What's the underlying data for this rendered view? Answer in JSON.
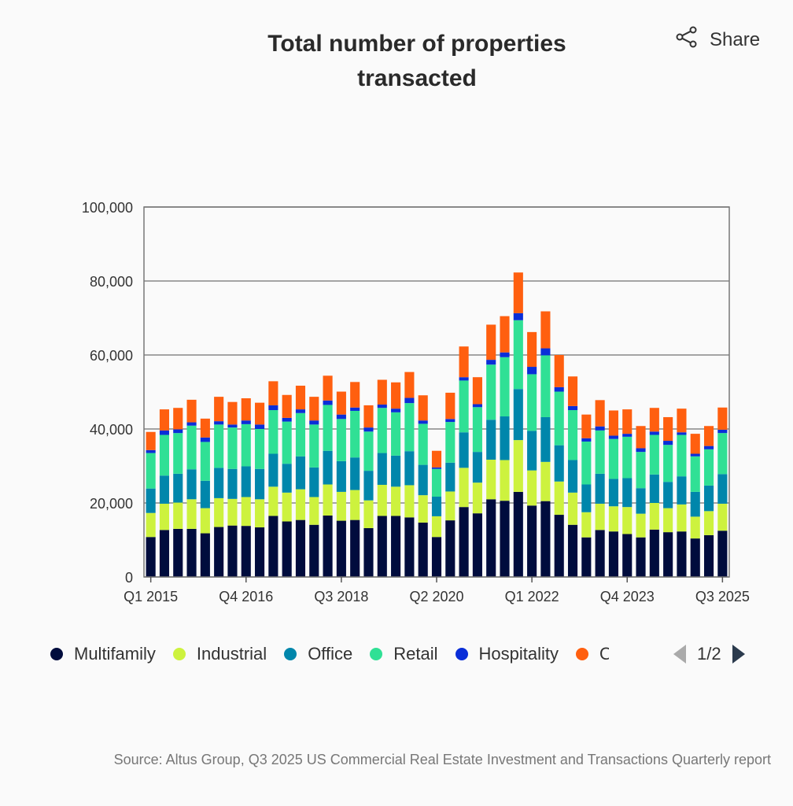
{
  "header": {
    "share_label": "Share",
    "share_icon": "share-icon"
  },
  "pager": {
    "label": "1/2"
  },
  "source": "Source: Altus Group, Q3 2025 US Commercial Real Estate Investment and Transactions Quarterly report",
  "chart_data": {
    "type": "bar",
    "stacked": true,
    "title": "Total number of properties transacted",
    "xlabel": "",
    "ylabel": "",
    "ylim": [
      0,
      100000
    ],
    "yticks": [
      0,
      20000,
      40000,
      60000,
      80000,
      100000
    ],
    "ytick_labels": [
      "0",
      "20,000",
      "40,000",
      "60,000",
      "80,000",
      "100,000"
    ],
    "grid": true,
    "legend_position": "bottom",
    "categories": [
      "Q1 2015",
      "Q2 2015",
      "Q3 2015",
      "Q4 2015",
      "Q1 2016",
      "Q2 2016",
      "Q3 2016",
      "Q4 2016",
      "Q1 2017",
      "Q2 2017",
      "Q3 2017",
      "Q4 2017",
      "Q1 2018",
      "Q2 2018",
      "Q3 2018",
      "Q4 2018",
      "Q1 2019",
      "Q2 2019",
      "Q3 2019",
      "Q4 2019",
      "Q1 2020",
      "Q2 2020",
      "Q3 2020",
      "Q4 2020",
      "Q1 2021",
      "Q2 2021",
      "Q3 2021",
      "Q4 2021",
      "Q1 2022",
      "Q2 2022",
      "Q3 2022",
      "Q4 2022",
      "Q1 2023",
      "Q2 2023",
      "Q3 2023",
      "Q4 2023",
      "Q1 2024",
      "Q2 2024",
      "Q3 2024",
      "Q4 2024",
      "Q1 2025",
      "Q2 2025",
      "Q3 2025"
    ],
    "xtick_labels": [
      "Q1 2015",
      "Q4 2016",
      "Q3 2018",
      "Q2 2020",
      "Q1 2022",
      "Q4 2023",
      "Q3 2025"
    ],
    "series": [
      {
        "name": "Multifamily",
        "color": "#000c3d",
        "values": [
          10800,
          12700,
          13000,
          13000,
          11800,
          13500,
          13900,
          13800,
          13400,
          16500,
          15000,
          15400,
          14100,
          16600,
          15200,
          15400,
          13200,
          16500,
          16500,
          16100,
          14700,
          10800,
          15300,
          18900,
          17200,
          21000,
          20600,
          23000,
          19300,
          20500,
          16800,
          14100,
          10700,
          12700,
          12300,
          11600,
          10700,
          12800,
          12100,
          12300,
          10400,
          11300,
          12500
        ]
      },
      {
        "name": "Industrial",
        "color": "#cdf23e",
        "values": [
          6500,
          7100,
          7100,
          8000,
          6800,
          7800,
          7200,
          7800,
          7600,
          7900,
          7800,
          8300,
          7500,
          8400,
          7800,
          8100,
          7500,
          8400,
          7900,
          8700,
          7400,
          5600,
          7800,
          10600,
          8300,
          10700,
          11000,
          14000,
          9500,
          10600,
          9000,
          8700,
          6800,
          7100,
          6800,
          7300,
          6400,
          7200,
          6500,
          7300,
          5900,
          6500,
          7300
        ]
      },
      {
        "name": "Office",
        "color": "#0086ab",
        "values": [
          6600,
          7600,
          7800,
          8100,
          7400,
          8200,
          8100,
          8300,
          8200,
          8900,
          7800,
          8900,
          8000,
          9100,
          8300,
          8800,
          8000,
          8600,
          8400,
          9200,
          8200,
          5300,
          7800,
          9600,
          8300,
          10800,
          11800,
          13800,
          10700,
          12100,
          9800,
          8800,
          7500,
          8100,
          7400,
          7800,
          6900,
          7700,
          7100,
          7600,
          6700,
          6900,
          8000
        ]
      },
      {
        "name": "Retail",
        "color": "#30e095",
        "values": [
          9600,
          11000,
          11000,
          11800,
          10500,
          11700,
          11200,
          11400,
          10800,
          11800,
          11400,
          11700,
          11600,
          12400,
          11400,
          12600,
          10600,
          12200,
          11700,
          13000,
          11100,
          7500,
          11000,
          14000,
          12100,
          14900,
          16000,
          18600,
          15300,
          16700,
          14500,
          13500,
          11600,
          11700,
          10800,
          11200,
          9800,
          10700,
          10000,
          11200,
          9600,
          9800,
          11100
        ]
      },
      {
        "name": "Hospitality",
        "color": "#0a2ed8",
        "values": [
          800,
          1200,
          1000,
          900,
          1200,
          900,
          800,
          1000,
          1200,
          1300,
          1000,
          1000,
          1100,
          1200,
          1200,
          900,
          1100,
          900,
          1000,
          1400,
          900,
          400,
          800,
          900,
          800,
          1300,
          1300,
          1900,
          2000,
          1900,
          1200,
          1100,
          900,
          1100,
          900,
          800,
          1000,
          900,
          1100,
          700,
          700,
          900,
          900
        ]
      },
      {
        "name": "Other",
        "color": "#ff5f0f",
        "values": [
          4900,
          5700,
          5800,
          6100,
          5100,
          6600,
          6100,
          6000,
          5900,
          6500,
          6200,
          6400,
          6400,
          6700,
          6200,
          6900,
          6000,
          6700,
          7100,
          7000,
          6800,
          4500,
          7100,
          8300,
          7300,
          9500,
          9800,
          11000,
          9400,
          10000,
          8700,
          8000,
          6400,
          7100,
          6800,
          6600,
          6000,
          6400,
          6400,
          6400,
          5400,
          5400,
          6000
        ]
      }
    ]
  }
}
